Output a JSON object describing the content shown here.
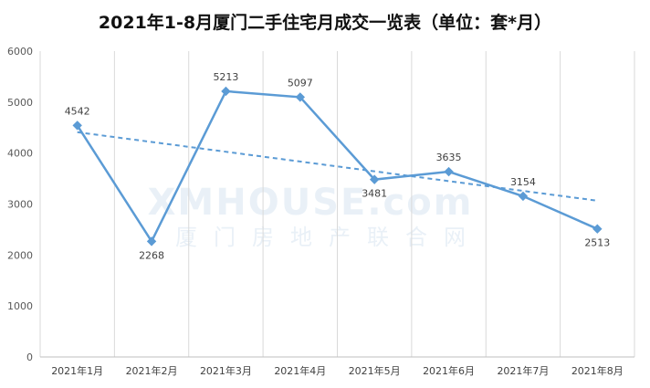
{
  "chart_data": {
    "type": "line",
    "title": "2021年1-8月厦门二手住宅月成交一览表（单位：套*月）",
    "xlabel": "",
    "ylabel": "",
    "categories": [
      "2021年1月",
      "2021年2月",
      "2021年3月",
      "2021年4月",
      "2021年5月",
      "2021年6月",
      "2021年7月",
      "2021年8月"
    ],
    "series": [
      {
        "values": [
          4542,
          2268,
          5213,
          5097,
          3481,
          3635,
          3154,
          2513
        ]
      }
    ],
    "trendline": {
      "type": "linear",
      "style": "dashed"
    },
    "ylim": [
      0,
      6000
    ],
    "yticks": [
      0,
      1000,
      2000,
      3000,
      4000,
      5000,
      6000
    ],
    "grid": "vertical",
    "legend": "none",
    "data_labels": true
  },
  "watermark": {
    "main": "XMHOUSE.com",
    "sub": "厦门房地产联合网"
  },
  "colors": {
    "line": "#5b9bd5",
    "trend": "#5b9bd5",
    "grid": "#d9d9d9",
    "axis_text": "#595959",
    "title": "#111111"
  }
}
